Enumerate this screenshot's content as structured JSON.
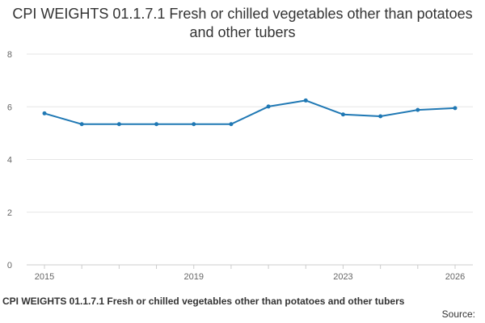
{
  "chart_data": {
    "type": "line",
    "title": "CPI WEIGHTS 01.1.7.1 Fresh or chilled vegetables other than potatoes and other tubers",
    "x": [
      2015,
      2016,
      2017,
      2018,
      2019,
      2020,
      2021,
      2022,
      2023,
      2024,
      2025,
      2026
    ],
    "x_tick_labels": [
      "2015",
      "2019",
      "2023",
      "2026"
    ],
    "x_tick_values": [
      2015,
      2019,
      2023,
      2026
    ],
    "ylim": [
      0,
      8
    ],
    "y_ticks": [
      0,
      2,
      4,
      6,
      8
    ],
    "series": [
      {
        "values": [
          5.75,
          5.34,
          5.34,
          5.34,
          5.34,
          5.34,
          6.01,
          6.24,
          5.71,
          5.64,
          5.88,
          5.95
        ],
        "color": "#1f78b4"
      }
    ],
    "grid": true,
    "legend": "none"
  },
  "footer": {
    "caption": "CPI WEIGHTS 01.1.7.1 Fresh or chilled vegetables other than potatoes and other tubers",
    "source": "Source:"
  },
  "colors": {
    "line": "#1f78b4",
    "grid": "#e6e6e6",
    "axis": "#cccccc",
    "text": "#333333",
    "tick_text": "#666666"
  }
}
